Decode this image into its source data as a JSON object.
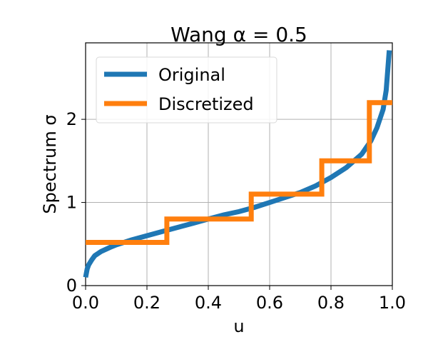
{
  "chart_data": {
    "type": "line",
    "title": "Wang α = 0.5",
    "xlabel": "u",
    "ylabel": "Spectrum σ",
    "xlim": [
      0.0,
      1.0
    ],
    "ylim": [
      0.0,
      2.92
    ],
    "x_ticks": [
      0.0,
      0.2,
      0.4,
      0.6,
      0.8,
      1.0
    ],
    "x_tick_labels": [
      "0.0",
      "0.2",
      "0.4",
      "0.6",
      "0.8",
      "1.0"
    ],
    "y_ticks": [
      0,
      1,
      2
    ],
    "y_tick_labels": [
      "0",
      "1",
      "2"
    ],
    "grid": true,
    "legend_position": "upper-left",
    "series": [
      {
        "name": "Original",
        "color": "#1f77b4",
        "style": "line",
        "x": [
          0.0,
          0.005,
          0.01,
          0.02,
          0.03,
          0.05,
          0.08,
          0.1,
          0.15,
          0.2,
          0.25,
          0.3,
          0.35,
          0.4,
          0.45,
          0.5,
          0.55,
          0.6,
          0.65,
          0.7,
          0.75,
          0.8,
          0.85,
          0.9,
          0.93,
          0.95,
          0.97,
          0.98,
          0.99
        ],
        "y": [
          0.1,
          0.2,
          0.25,
          0.31,
          0.36,
          0.41,
          0.46,
          0.49,
          0.55,
          0.6,
          0.65,
          0.7,
          0.75,
          0.8,
          0.85,
          0.89,
          0.94,
          1.0,
          1.06,
          1.12,
          1.2,
          1.3,
          1.42,
          1.58,
          1.74,
          1.9,
          2.12,
          2.35,
          2.83
        ]
      },
      {
        "name": "Discretized",
        "color": "#ff7f0e",
        "style": "step",
        "x": [
          0.0,
          0.265,
          0.265,
          0.54,
          0.54,
          0.77,
          0.77,
          0.925,
          0.925,
          1.0
        ],
        "y": [
          0.52,
          0.52,
          0.8,
          0.8,
          1.1,
          1.1,
          1.5,
          1.5,
          2.2,
          2.2
        ]
      }
    ]
  }
}
